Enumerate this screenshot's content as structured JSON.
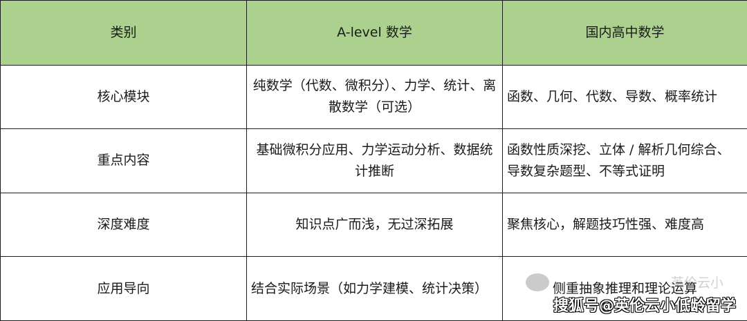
{
  "table": {
    "headers": [
      "类别",
      "A-level 数学",
      "国内高中数学"
    ],
    "rows": [
      [
        "核心模块",
        "纯数学（代数、微积分）、力学、统计、离散数学（可选）",
        "函数、几何、代数、导数、概率统计"
      ],
      [
        "重点内容",
        "基础微积分应用、力学运动分析、数据统计推断",
        "函数性质深挖、立体 / 解析几何综合、导数复杂题型、不等式证明"
      ],
      [
        "深度难度",
        "知识点广而浅，无过深拓展",
        "聚焦核心，解题技巧性强、难度高"
      ],
      [
        "应用导向",
        "结合实际场景（如力学建模、统计决策）",
        "侧重抽象推理和理论运算"
      ]
    ],
    "header_color": "#acd18f"
  },
  "watermark": {
    "wechat_icon": "wechat-icon",
    "faint_text": "英伦云小",
    "sohu_text": "搜狐号@英伦云小低龄留学"
  }
}
